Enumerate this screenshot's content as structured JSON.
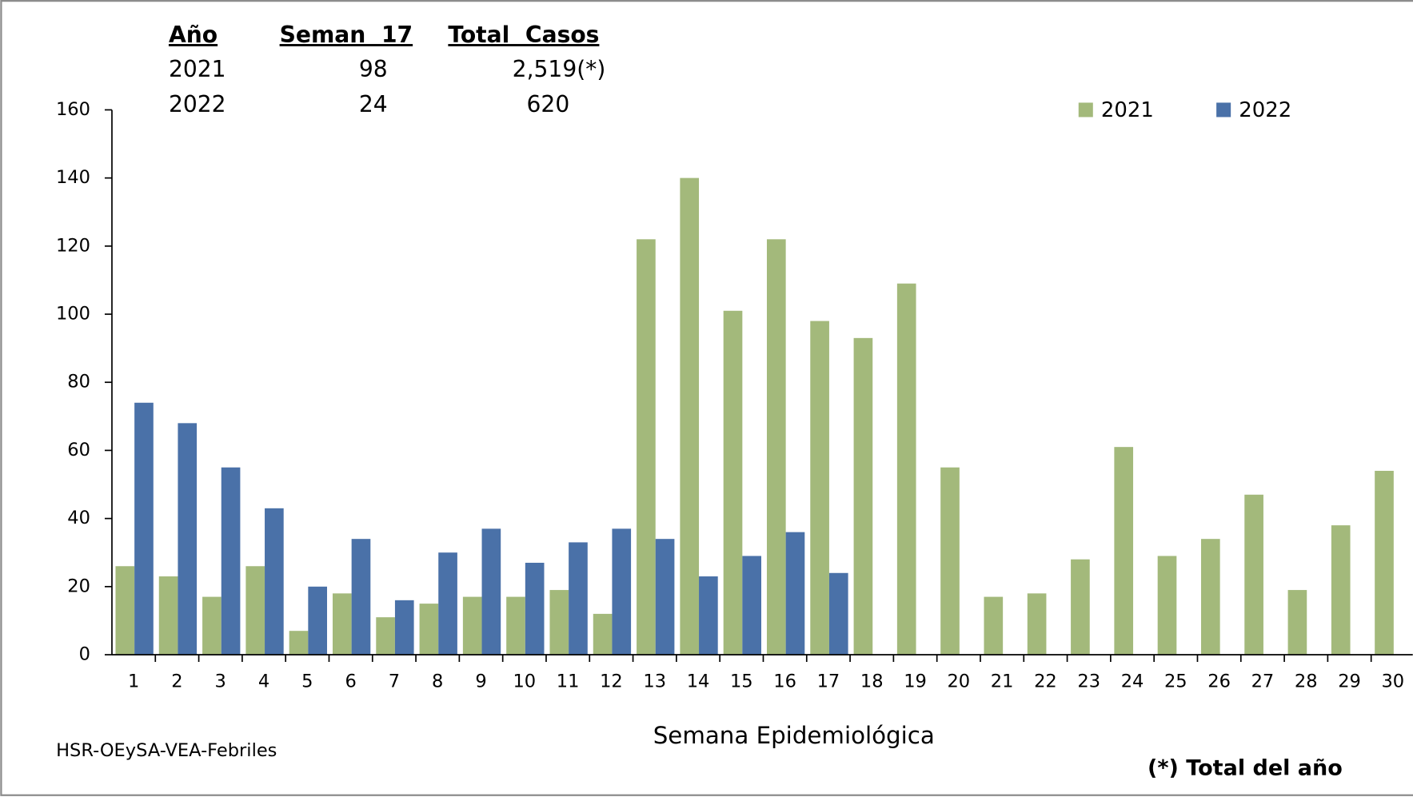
{
  "chart_data": {
    "type": "bar",
    "x_label": "Semana Epidemiológica",
    "categories": [
      "1",
      "2",
      "3",
      "4",
      "5",
      "6",
      "7",
      "8",
      "9",
      "10",
      "11",
      "12",
      "13",
      "14",
      "15",
      "16",
      "17",
      "18",
      "19",
      "20",
      "21",
      "22",
      "23",
      "24",
      "25",
      "26",
      "27",
      "28",
      "29",
      "30"
    ],
    "series": [
      {
        "name": "2021",
        "color": "#a3b97b",
        "values": [
          26,
          23,
          17,
          26,
          7,
          18,
          11,
          15,
          17,
          17,
          19,
          12,
          122,
          140,
          101,
          122,
          98,
          93,
          109,
          55,
          17,
          18,
          28,
          61,
          29,
          34,
          47,
          19,
          38,
          54
        ]
      },
      {
        "name": "2022",
        "color": "#4a71a8",
        "values": [
          74,
          68,
          55,
          43,
          20,
          34,
          16,
          30,
          37,
          27,
          33,
          37,
          34,
          23,
          29,
          36,
          24,
          null,
          null,
          null,
          null,
          null,
          null,
          null,
          null,
          null,
          null,
          null,
          null,
          null
        ]
      }
    ],
    "ylim": [
      0,
      160
    ],
    "yticks": [
      0,
      20,
      40,
      60,
      80,
      100,
      120,
      140,
      160
    ],
    "grid": false
  },
  "table": {
    "header": [
      "Año",
      "Seman  17",
      "Total  Casos"
    ],
    "rows": [
      [
        "2021",
        "98",
        "2,519(*)"
      ],
      [
        "2022",
        "24",
        "620"
      ]
    ]
  },
  "source": "HSR-OEySA-VEA-Febriles",
  "footnote": "(*) Total del año"
}
